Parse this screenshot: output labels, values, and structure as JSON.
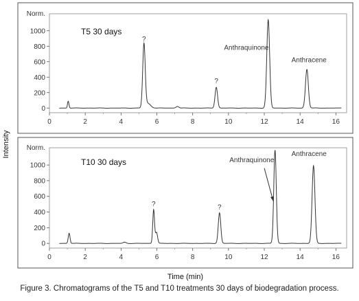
{
  "caption": "Figure 3. Chromatograms of the T5 and T10 treatments 30 days of biodegradation process.",
  "shared_axes": {
    "xlabel": "Time (min)",
    "ylabel": "Intensity"
  },
  "chart_data": [
    {
      "type": "line",
      "title": "T5 30 days",
      "ylabel_top": "Norm.",
      "xlim": [
        0,
        16.6
      ],
      "ylim": [
        -60,
        1220
      ],
      "x_ticks": [
        0,
        2,
        4,
        6,
        8,
        10,
        12,
        14,
        16
      ],
      "y_ticks": [
        0,
        200,
        400,
        600,
        800,
        1000
      ],
      "baseline": 0,
      "peaks": [
        {
          "x": 1.05,
          "height": 90,
          "width": 0.04
        },
        {
          "x": 5.28,
          "height": 820,
          "width": 0.07
        },
        {
          "x": 5.5,
          "height": 60,
          "width": 0.15
        },
        {
          "x": 7.15,
          "height": 22,
          "width": 0.08
        },
        {
          "x": 9.32,
          "height": 270,
          "width": 0.07
        },
        {
          "x": 12.22,
          "height": 1140,
          "width": 0.08
        },
        {
          "x": 14.38,
          "height": 500,
          "width": 0.08
        }
      ],
      "annotations": [
        {
          "text": "?",
          "x": 5.28,
          "y": 830
        },
        {
          "text": "?",
          "x": 9.32,
          "y": 285
        },
        {
          "text": "Anthraquinone",
          "x": 11.0,
          "y": 720
        },
        {
          "text": "Anthracene",
          "x": 14.5,
          "y": 560
        }
      ]
    },
    {
      "type": "line",
      "title": "T10 30 days",
      "ylabel_top": "Norm.",
      "xlim": [
        0,
        16.6
      ],
      "ylim": [
        -60,
        1220
      ],
      "x_ticks": [
        0,
        2,
        4,
        6,
        8,
        10,
        12,
        14,
        16
      ],
      "y_ticks": [
        0,
        200,
        400,
        600,
        800,
        1000
      ],
      "baseline": 0,
      "peaks": [
        {
          "x": 1.1,
          "height": 130,
          "width": 0.05
        },
        {
          "x": 4.2,
          "height": 15,
          "width": 0.08
        },
        {
          "x": 5.82,
          "height": 430,
          "width": 0.05
        },
        {
          "x": 5.98,
          "height": 140,
          "width": 0.06
        },
        {
          "x": 9.5,
          "height": 390,
          "width": 0.07
        },
        {
          "x": 12.6,
          "height": 1190,
          "width": 0.07
        },
        {
          "x": 14.75,
          "height": 990,
          "width": 0.08
        }
      ],
      "annotations": [
        {
          "text": "?",
          "x": 5.82,
          "y": 440
        },
        {
          "text": "?",
          "x": 9.5,
          "y": 400
        },
        {
          "text": "Anthraquinone",
          "x": 11.3,
          "y": 1000
        },
        {
          "text": "Anthracene",
          "x": 14.5,
          "y": 1080
        }
      ],
      "arrow": {
        "from": [
          12.0,
          960
        ],
        "to": [
          12.5,
          540
        ]
      }
    }
  ]
}
